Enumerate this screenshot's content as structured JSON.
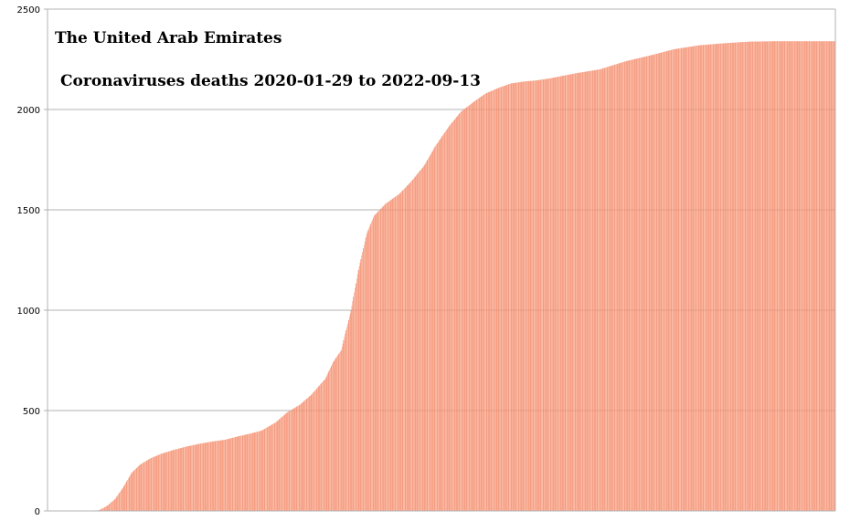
{
  "chart_data": {
    "type": "bar",
    "title": "The United Arab Emirates",
    "subtitle": "Coronaviruses deaths 2020-01-29 to 2022-09-13",
    "xlabel": "",
    "ylabel": "",
    "ylim": [
      0,
      2500
    ],
    "yticks": [
      0,
      500,
      1000,
      1500,
      2000,
      2500
    ],
    "ytick_labels": [
      "0",
      "500",
      "1000",
      "1500",
      "2000",
      "2500"
    ],
    "grid": true,
    "legend": "none",
    "x_start": "2020-01-29",
    "x_end": "2022-09-13",
    "bar_color": "#f8a082",
    "bar_stripe_color": "#f07a5a",
    "series": [
      {
        "x": [
          "2020-01-29",
          "2020-03-01",
          "2020-03-20",
          "2020-03-31",
          "2020-04-10",
          "2020-04-20",
          "2020-04-30",
          "2020-05-10",
          "2020-05-20",
          "2020-06-01",
          "2020-06-15",
          "2020-07-01",
          "2020-07-15",
          "2020-08-01",
          "2020-08-15",
          "2020-09-01",
          "2020-09-15",
          "2020-10-01",
          "2020-10-15",
          "2020-11-01",
          "2020-11-15",
          "2020-12-01",
          "2020-12-15",
          "2021-01-01",
          "2021-01-10",
          "2021-01-20",
          "2021-02-01",
          "2021-02-10",
          "2021-02-20",
          "2021-03-01",
          "2021-03-15",
          "2021-04-01",
          "2021-04-15",
          "2021-05-01",
          "2021-05-15",
          "2021-06-01",
          "2021-06-15",
          "2021-07-01",
          "2021-07-15",
          "2021-08-01",
          "2021-08-15",
          "2021-09-01",
          "2021-09-15",
          "2021-10-01",
          "2021-11-01",
          "2021-12-01",
          "2022-01-01",
          "2022-02-01",
          "2022-03-01",
          "2022-04-01",
          "2022-05-01",
          "2022-06-01",
          "2022-07-01",
          "2022-08-01",
          "2022-09-13"
        ],
        "values": [
          0,
          0,
          2,
          3,
          25,
          60,
          120,
          190,
          230,
          260,
          285,
          305,
          320,
          335,
          345,
          355,
          370,
          385,
          400,
          440,
          490,
          530,
          580,
          660,
          740,
          800,
          1000,
          1200,
          1380,
          1470,
          1530,
          1580,
          1640,
          1720,
          1820,
          1920,
          1990,
          2040,
          2080,
          2110,
          2130,
          2140,
          2145,
          2155,
          2180,
          2200,
          2240,
          2270,
          2300,
          2320,
          2330,
          2338,
          2340,
          2340,
          2340
        ]
      }
    ]
  }
}
